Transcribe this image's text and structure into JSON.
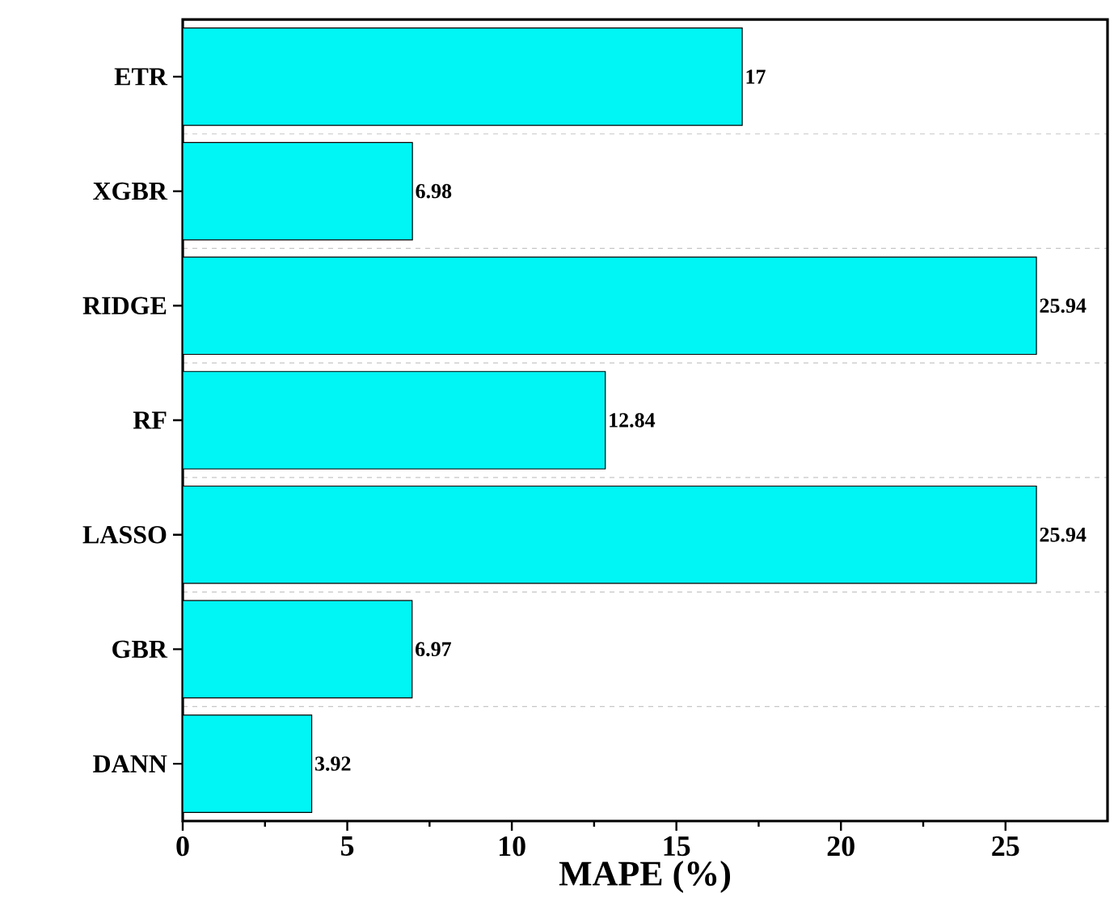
{
  "chart_data": {
    "type": "bar",
    "orientation": "horizontal",
    "xlabel": "MAPE (%)",
    "categories": [
      "ETR",
      "XGBR",
      "RIDGE",
      "RF",
      "LASSO",
      "GBR",
      "DANN"
    ],
    "values": [
      17,
      6.98,
      25.94,
      12.84,
      25.94,
      6.97,
      3.92
    ],
    "color": "#00f5f5",
    "xlim": [
      0,
      28.1
    ],
    "xticks": [
      0,
      5,
      10,
      15,
      20,
      25
    ],
    "data_labels": true,
    "grid": "y"
  }
}
